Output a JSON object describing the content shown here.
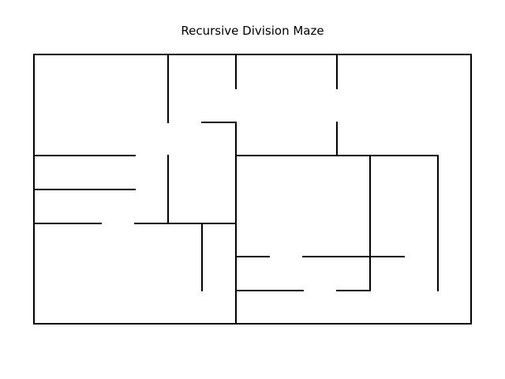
{
  "figure": {
    "title": "Recursive Division Maze"
  },
  "maze": {
    "line_color": "#000000",
    "background": "#ffffff",
    "cell_grid": {
      "columns": 13,
      "rows": 8
    }
  }
}
